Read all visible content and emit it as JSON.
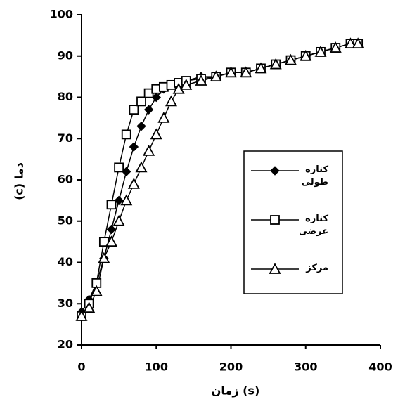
{
  "chart_data": {
    "type": "line",
    "x_label": "زمان (s)",
    "y_label": "(c) دما",
    "x": [
      0,
      10,
      20,
      30,
      40,
      50,
      60,
      70,
      80,
      90,
      100,
      110,
      120,
      130,
      140,
      160,
      180,
      200,
      220,
      240,
      260,
      280,
      300,
      320,
      340,
      360,
      370
    ],
    "series": [
      {
        "name": "کناره طولی",
        "color": "#000000",
        "marker": "diamond",
        "values": [
          28,
          31,
          35,
          41,
          48,
          55,
          62,
          68,
          73,
          77,
          80,
          82,
          83,
          83.5,
          84,
          85,
          85,
          86,
          86,
          87,
          88,
          89,
          90,
          91,
          92,
          93,
          93
        ]
      },
      {
        "name": "کناره عرضی",
        "color": "#000000",
        "marker": "square",
        "values": [
          27,
          30,
          35,
          45,
          54,
          63,
          71,
          77,
          79,
          81,
          82,
          82.5,
          83,
          83.5,
          84,
          84.5,
          85,
          86,
          86,
          87,
          88,
          89,
          90,
          91,
          92,
          93,
          93
        ]
      },
      {
        "name": "مرکز",
        "color": "#000000",
        "marker": "triangle",
        "values": [
          27,
          29,
          33,
          41,
          45,
          50,
          55,
          59,
          63,
          67,
          71,
          75,
          79,
          82,
          83,
          84,
          85,
          86,
          86,
          87,
          88,
          89,
          90,
          91,
          92,
          93,
          93
        ]
      }
    ],
    "xlim": [
      0,
      400
    ],
    "xticks": [
      0,
      100,
      200,
      300,
      400
    ],
    "ylim": [
      20,
      100
    ],
    "yticks": [
      20,
      30,
      40,
      50,
      60,
      70,
      80,
      90,
      100
    ]
  }
}
